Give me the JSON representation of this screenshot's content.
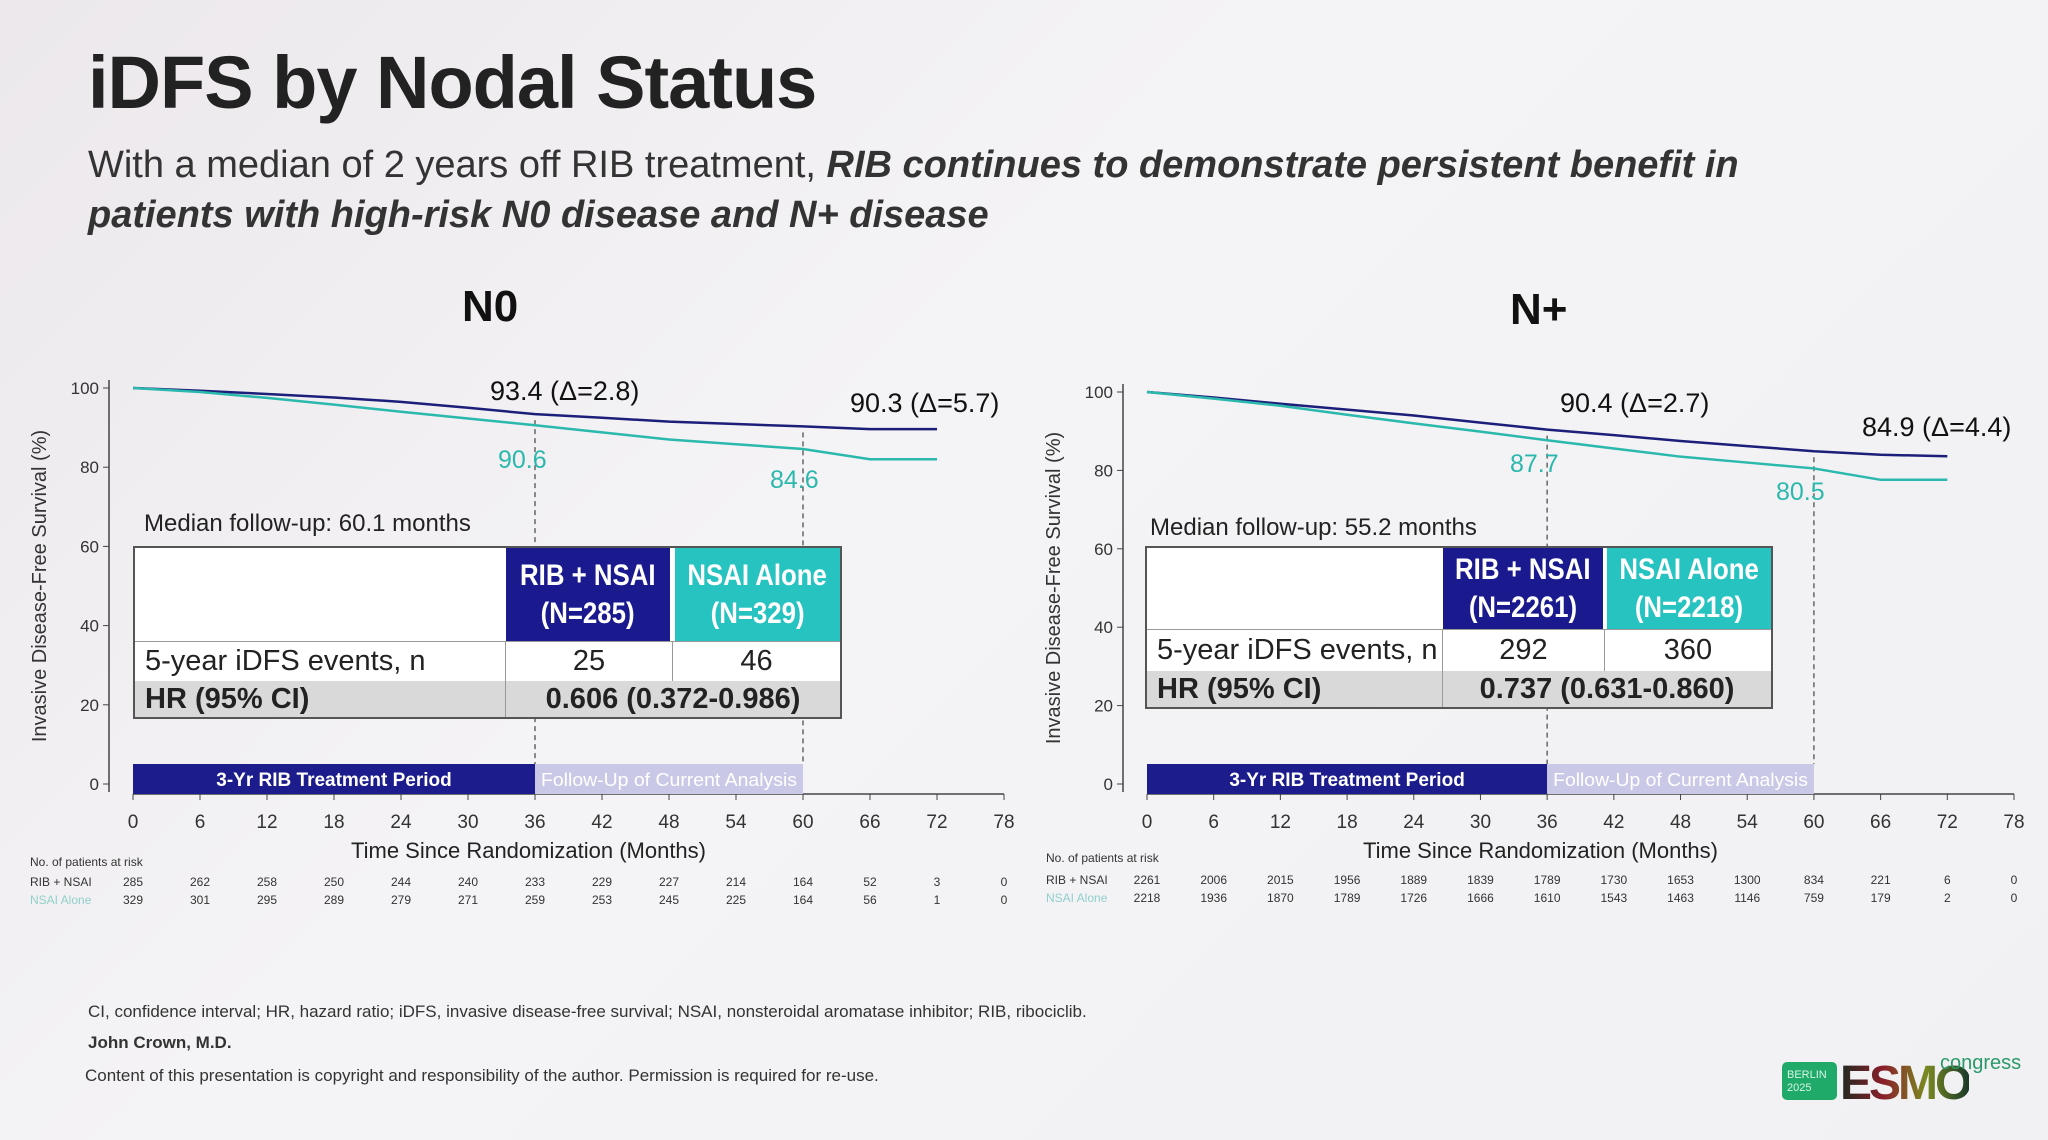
{
  "slide": {
    "title": "iDFS by Nodal Status",
    "subtitle_plain": "With a median of 2 years off RIB treatment, ",
    "subtitle_emph": "RIB continues to demonstrate persistent benefit in patients with high-risk N0 disease and N+ disease",
    "footnote": "CI, confidence interval; HR, hazard ratio; iDFS, invasive disease-free survival; NSAI, nonsteroidal aromatase inhibitor; RIB, ribociclib.",
    "author": "John Crown, M.D.",
    "copyright": "Content of this presentation is copyright and responsibility of the author. Permission is required for re-use.",
    "logo": {
      "badge": "BERLIN 2025",
      "brand": "ESMO",
      "suffix": "congress"
    }
  },
  "colors": {
    "rib": "#1c1f7a",
    "nsai": "#2bb8ad",
    "rib_header": "#1a1a8e",
    "nsai_header": "#27c3c0",
    "treatment_bar": "#1c1c8c",
    "followup_bar": "#c9c8e6"
  },
  "chart_data": [
    {
      "type": "line",
      "title": "N0",
      "ylabel": "Invasive Disease-Free Survival (%)",
      "xlabel": "Time Since Randomization (Months)",
      "xlim": [
        0,
        78
      ],
      "ylim": [
        0,
        100
      ],
      "xticks": [
        0,
        6,
        12,
        18,
        24,
        30,
        36,
        42,
        48,
        54,
        60,
        66,
        72,
        78
      ],
      "yticks": [
        0,
        20,
        40,
        60,
        80,
        100
      ],
      "series": [
        {
          "name": "RIB + NSAI",
          "x": [
            0,
            6,
            12,
            18,
            24,
            30,
            36,
            42,
            48,
            54,
            60,
            66,
            72
          ],
          "y": [
            100,
            99.3,
            98.5,
            97.6,
            96.5,
            95,
            93.4,
            92.5,
            91.5,
            90.9,
            90.3,
            89.6,
            89.6
          ]
        },
        {
          "name": "NSAI Alone",
          "x": [
            0,
            6,
            12,
            18,
            24,
            30,
            36,
            42,
            48,
            54,
            60,
            66,
            72
          ],
          "y": [
            100,
            99,
            97.5,
            95.8,
            94,
            92.3,
            90.6,
            88.8,
            87,
            85.8,
            84.6,
            82,
            82
          ]
        }
      ],
      "annotations": {
        "rib36": "93.4 (Δ=2.8)",
        "nsai36": "90.6",
        "rib60": "90.3 (Δ=5.7)",
        "nsai60": "84.6"
      },
      "median_followup": "Median follow-up: 60.1 months",
      "table": {
        "col1": "RIB + NSAI\n(N=285)",
        "col1a": "RIB + NSAI",
        "col1b": "(N=285)",
        "col2a": "NSAI Alone",
        "col2b": "(N=329)",
        "row1_label": "5-year iDFS events, n",
        "row1_rib": "25",
        "row1_nsai": "46",
        "row2_label": "HR (95% CI)",
        "row2_value": "0.606 (0.372-0.986)"
      },
      "periods": {
        "treatment": "3-Yr RIB Treatment Period",
        "followup": "Follow-Up of Current Analysis"
      },
      "at_risk": {
        "label": "No. of patients at risk",
        "rows": [
          {
            "name": "RIB + NSAI",
            "values": [
              285,
              262,
              258,
              250,
              244,
              240,
              233,
              229,
              227,
              214,
              164,
              52,
              3,
              0
            ]
          },
          {
            "name": "NSAI Alone",
            "values": [
              329,
              301,
              295,
              289,
              279,
              271,
              259,
              253,
              245,
              225,
              164,
              56,
              1,
              0
            ]
          }
        ]
      }
    },
    {
      "type": "line",
      "title": "N+",
      "ylabel": "Invasive Disease-Free Survival (%)",
      "xlabel": "Time Since Randomization (Months)",
      "xlim": [
        0,
        78
      ],
      "ylim": [
        0,
        100
      ],
      "xticks": [
        0,
        6,
        12,
        18,
        24,
        30,
        36,
        42,
        48,
        54,
        60,
        66,
        72,
        78
      ],
      "yticks": [
        0,
        20,
        40,
        60,
        80,
        100
      ],
      "series": [
        {
          "name": "RIB + NSAI",
          "x": [
            0,
            6,
            12,
            18,
            24,
            30,
            36,
            42,
            48,
            54,
            60,
            66,
            72
          ],
          "y": [
            100,
            98.6,
            97,
            95.5,
            94,
            92.2,
            90.4,
            89,
            87.5,
            86.2,
            84.9,
            84,
            83.6
          ]
        },
        {
          "name": "NSAI Alone",
          "x": [
            0,
            6,
            12,
            18,
            24,
            30,
            36,
            42,
            48,
            54,
            60,
            66,
            72
          ],
          "y": [
            100,
            98.3,
            96.5,
            94.2,
            92,
            89.9,
            87.7,
            85.6,
            83.5,
            82,
            80.5,
            77.6,
            77.6
          ]
        }
      ],
      "annotations": {
        "rib36": "90.4 (Δ=2.7)",
        "nsai36": "87.7",
        "rib60": "84.9 (Δ=4.4)",
        "nsai60": "80.5"
      },
      "median_followup": "Median follow-up: 55.2 months",
      "table": {
        "col1a": "RIB + NSAI",
        "col1b": "(N=2261)",
        "col2a": "NSAI Alone",
        "col2b": "(N=2218)",
        "row1_label": "5-year iDFS events, n",
        "row1_rib": "292",
        "row1_nsai": "360",
        "row2_label": "HR (95% CI)",
        "row2_value": "0.737 (0.631-0.860)"
      },
      "periods": {
        "treatment": "3-Yr RIB Treatment Period",
        "followup": "Follow-Up of Current Analysis"
      },
      "at_risk": {
        "label": "No. of patients at risk",
        "rows": [
          {
            "name": "RIB + NSAI",
            "values": [
              2261,
              2006,
              2015,
              1956,
              1889,
              1839,
              1789,
              1730,
              1653,
              1300,
              834,
              221,
              6,
              0
            ]
          },
          {
            "name": "NSAI Alone",
            "values": [
              2218,
              1936,
              1870,
              1789,
              1726,
              1666,
              1610,
              1543,
              1463,
              1146,
              759,
              179,
              2,
              0
            ]
          }
        ]
      }
    }
  ]
}
